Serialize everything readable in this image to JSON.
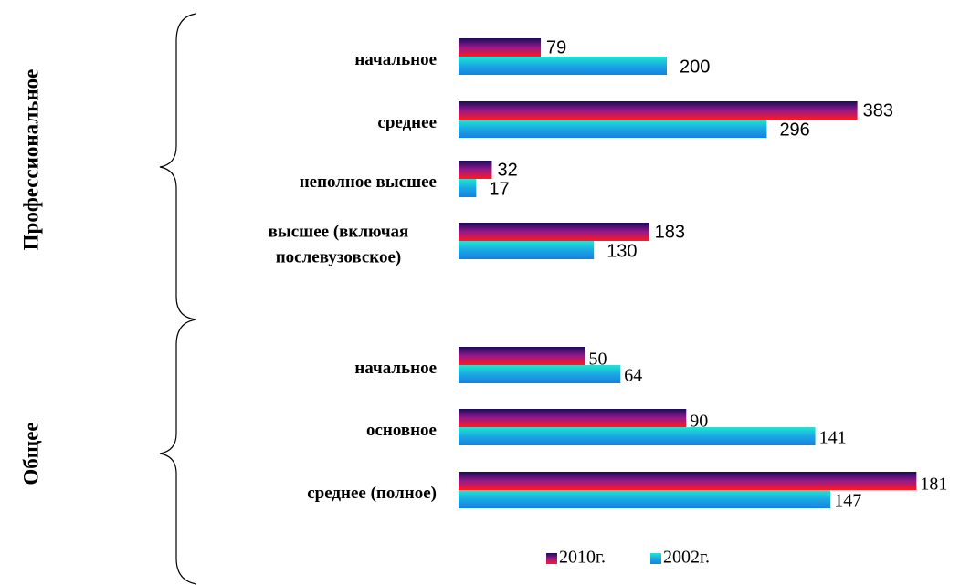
{
  "chart_data": [
    {
      "type": "bar",
      "group": "Профессиональное",
      "categories": [
        "начальное",
        "среднее",
        "неполное высшее",
        "высшее (включая послевузовское)"
      ],
      "series": [
        {
          "color": [
            "#1b0a5c",
            "#9a1888",
            "#ff1a1a"
          ],
          "values": [
            79,
            383,
            32,
            183
          ]
        },
        {
          "color": [
            "#22e6d2",
            "#1aa8e4",
            "#1a7fe0"
          ],
          "values": [
            200,
            296,
            17,
            130
          ]
        }
      ]
    },
    {
      "type": "bar",
      "group": "Общее",
      "categories": [
        "начальное",
        "основное",
        "среднее (полное)"
      ],
      "series": [
        {
          "name": "2010г.",
          "color": [
            "#1b0a5c",
            "#9a1888",
            "#ff1a1a"
          ],
          "values": [
            50,
            90,
            181
          ]
        },
        {
          "name": "2002г.",
          "color": [
            "#22e6d2",
            "#1aa8e4",
            "#1a7fe0"
          ],
          "values": [
            64,
            141,
            147
          ]
        }
      ]
    }
  ]
}
